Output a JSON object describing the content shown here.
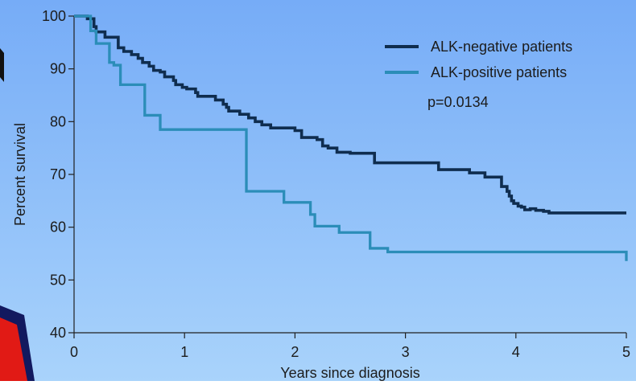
{
  "chart_data": {
    "type": "line",
    "title": "",
    "xlabel": "Years since diagnosis",
    "ylabel": "Percent survival",
    "xlim": [
      0,
      5
    ],
    "ylim": [
      40,
      100
    ],
    "x_ticks": [
      0,
      1,
      2,
      3,
      4,
      5
    ],
    "y_ticks": [
      40,
      50,
      60,
      70,
      80,
      90,
      100
    ],
    "grid": false,
    "legend_position": "top-right",
    "annotations": [
      {
        "text": "p=0.0134",
        "x": 3.2,
        "y": 82.8
      }
    ],
    "series": [
      {
        "name": "ALK-negative patients",
        "color": "#0f2d4f",
        "step": true,
        "x": [
          0,
          0.12,
          0.18,
          0.2,
          0.28,
          0.4,
          0.45,
          0.52,
          0.58,
          0.62,
          0.68,
          0.72,
          0.78,
          0.82,
          0.9,
          0.92,
          0.98,
          1.02,
          1.1,
          1.12,
          1.28,
          1.35,
          1.38,
          1.4,
          1.5,
          1.58,
          1.64,
          1.7,
          1.78,
          2.0,
          2.06,
          2.2,
          2.25,
          2.3,
          2.38,
          2.5,
          2.72,
          3.3,
          3.58,
          3.72,
          3.87,
          3.92,
          3.94,
          3.96,
          3.98,
          4.02,
          4.05,
          4.08,
          4.13,
          4.18,
          4.25,
          4.3,
          5.0
        ],
        "y": [
          100,
          99.5,
          98,
          97,
          96,
          94,
          93.3,
          92.7,
          92,
          91.2,
          90.5,
          89.7,
          89.4,
          88.5,
          87.8,
          87,
          86.5,
          86.2,
          85.5,
          84.8,
          84.1,
          83.3,
          82.7,
          82,
          81.4,
          80.7,
          80,
          79.4,
          78.8,
          78.3,
          77,
          76.6,
          75.4,
          75,
          74.2,
          74,
          72.2,
          70.9,
          70.3,
          69.5,
          67.7,
          66.8,
          65.9,
          65,
          64.5,
          64,
          63.8,
          63.3,
          63.5,
          63.2,
          63,
          62.7,
          62.7
        ]
      },
      {
        "name": "ALK-positive patients",
        "color": "#2b8db8",
        "step": true,
        "x": [
          0,
          0.15,
          0.2,
          0.32,
          0.36,
          0.42,
          0.64,
          0.78,
          1.43,
          1.56,
          1.9,
          2.14,
          2.18,
          2.4,
          2.68,
          2.84,
          5.0
        ],
        "y": [
          100,
          97.2,
          94.8,
          91.2,
          90.7,
          87,
          81.2,
          78.5,
          78.5,
          66.8,
          64.7,
          62.4,
          60.2,
          59,
          56,
          55.3,
          53.6
        ]
      }
    ]
  }
}
